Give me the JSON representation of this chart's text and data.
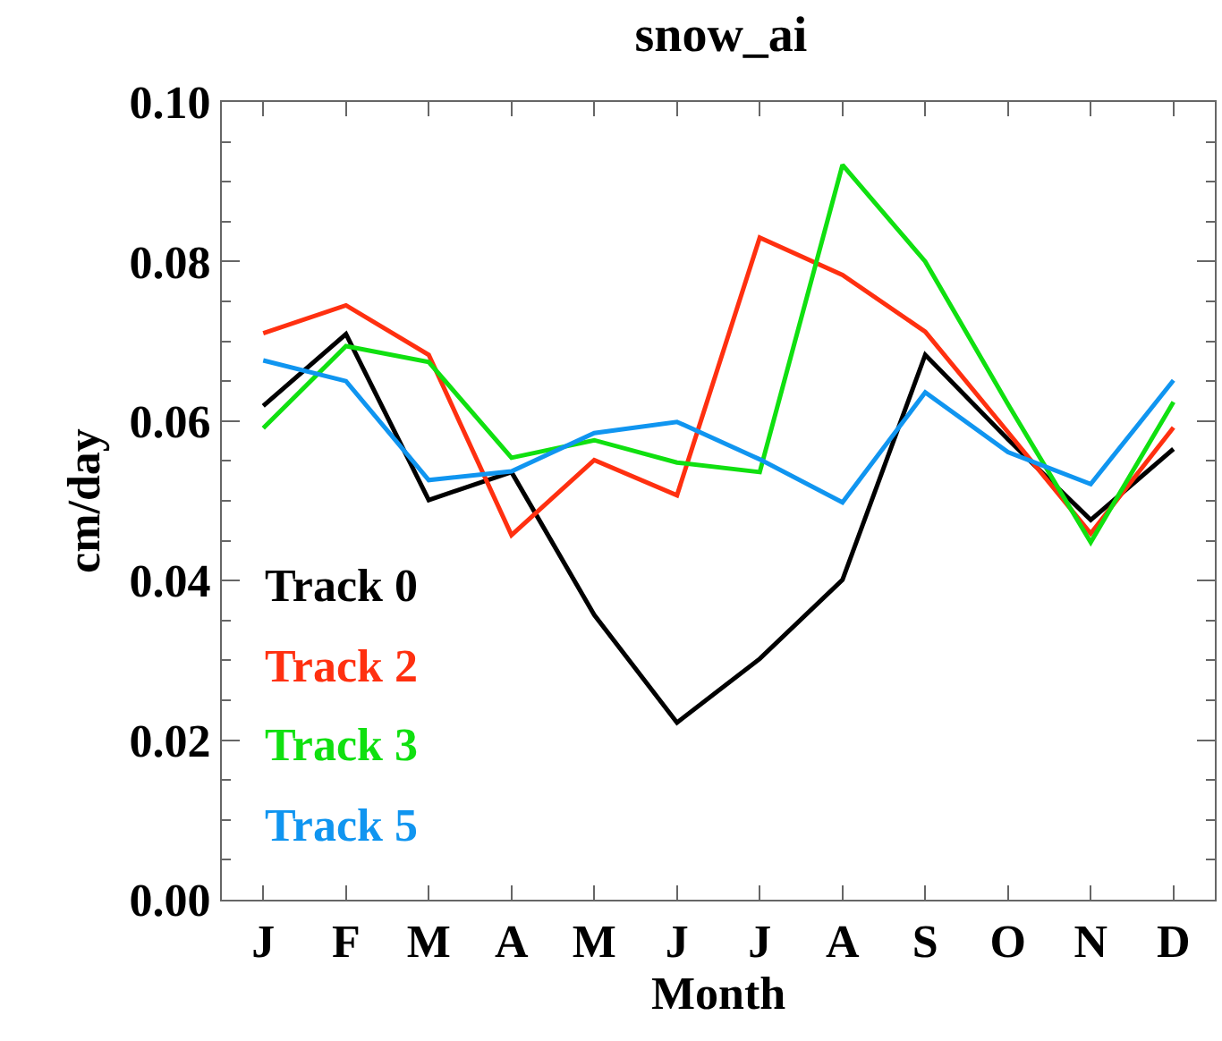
{
  "chart_data": {
    "type": "line",
    "title": "snow_ai",
    "xlabel": "Month",
    "ylabel": "cm/day",
    "categories": [
      "J",
      "F",
      "M",
      "A",
      "M",
      "J",
      "J",
      "A",
      "S",
      "O",
      "N",
      "D"
    ],
    "series": [
      {
        "name": "Track 0",
        "color": "#000000",
        "values": [
          0.0619,
          0.0709,
          0.0501,
          0.0536,
          0.0357,
          0.0222,
          0.0302,
          0.0401,
          0.0683,
          0.0577,
          0.0476,
          0.0565
        ]
      },
      {
        "name": "Track 2",
        "color": "#ff3010",
        "values": [
          0.071,
          0.0745,
          0.0683,
          0.0457,
          0.0551,
          0.0507,
          0.083,
          0.0783,
          0.0712,
          0.0586,
          0.0459,
          0.0592
        ]
      },
      {
        "name": "Track 3",
        "color": "#10e010",
        "values": [
          0.0591,
          0.0694,
          0.0674,
          0.0554,
          0.0576,
          0.0548,
          0.0536,
          0.0921,
          0.08,
          0.0621,
          0.0448,
          0.0624
        ]
      },
      {
        "name": "Track 5",
        "color": "#1095f0",
        "values": [
          0.0676,
          0.065,
          0.0526,
          0.0537,
          0.0585,
          0.0599,
          0.0552,
          0.0498,
          0.0636,
          0.0561,
          0.0521,
          0.0651
        ]
      }
    ],
    "ylim": [
      0,
      0.1
    ],
    "yticks": [
      {
        "value": 0,
        "label": "0.00"
      },
      {
        "value": 0.02,
        "label": "0.02"
      },
      {
        "value": 0.04,
        "label": "0.04"
      },
      {
        "value": 0.06,
        "label": "0.06"
      },
      {
        "value": 0.08,
        "label": "0.08"
      },
      {
        "value": 0.1,
        "label": "0.10"
      }
    ],
    "legend": "bottom left",
    "marker": "none",
    "line_style": "solid"
  }
}
